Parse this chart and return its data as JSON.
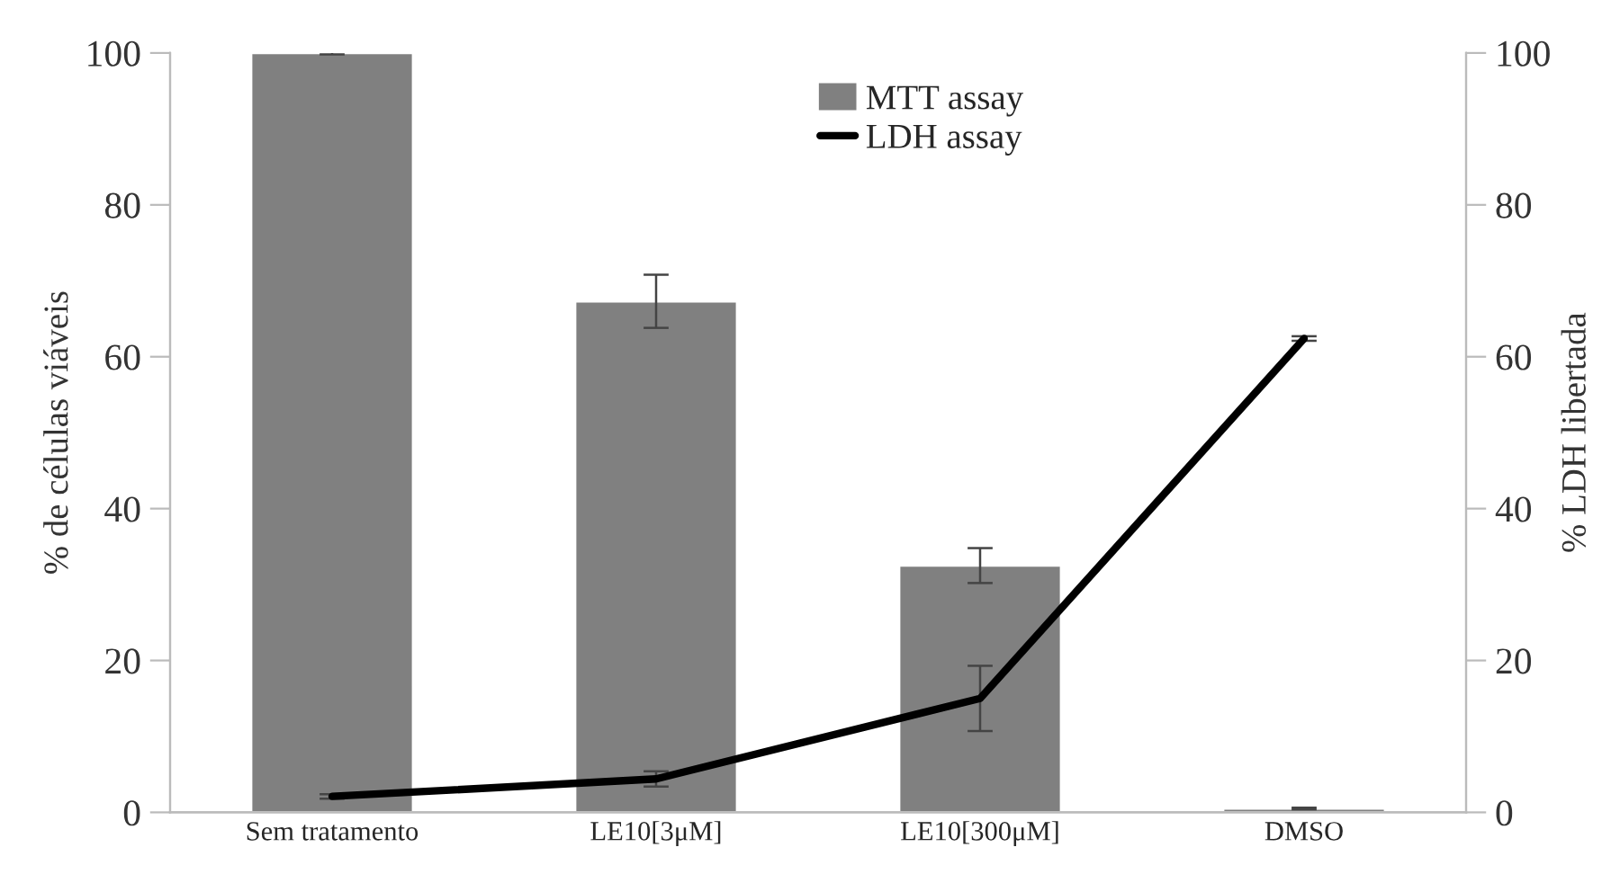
{
  "chart_data": {
    "type": "bar",
    "categories": [
      "Sem tratamento",
      "LE10[3μM]",
      "LE10[300μM]",
      "DMSO"
    ],
    "ylabel": "% de células viáveis",
    "y2label": "% LDH libertada",
    "ylim": [
      0,
      100
    ],
    "yticks": [
      0,
      20,
      40,
      60,
      80,
      100
    ],
    "y2lim": [
      0,
      100
    ],
    "y2ticks": [
      0,
      20,
      40,
      60,
      80,
      100
    ],
    "series": [
      {
        "name": "MTT assay",
        "color": "#808080",
        "values": [
          100,
          67.3,
          32.5,
          0.5
        ],
        "errors": [
          0.2,
          3.5,
          2.3,
          0.1
        ]
      },
      {
        "name": "LDH assay",
        "type": "line",
        "axis": "y2",
        "color": "#000000",
        "values": [
          2.1,
          4.4,
          15,
          62.4
        ],
        "errors": [
          0.3,
          1,
          4.3,
          0.3
        ]
      }
    ],
    "grid": false,
    "legend": "top"
  }
}
